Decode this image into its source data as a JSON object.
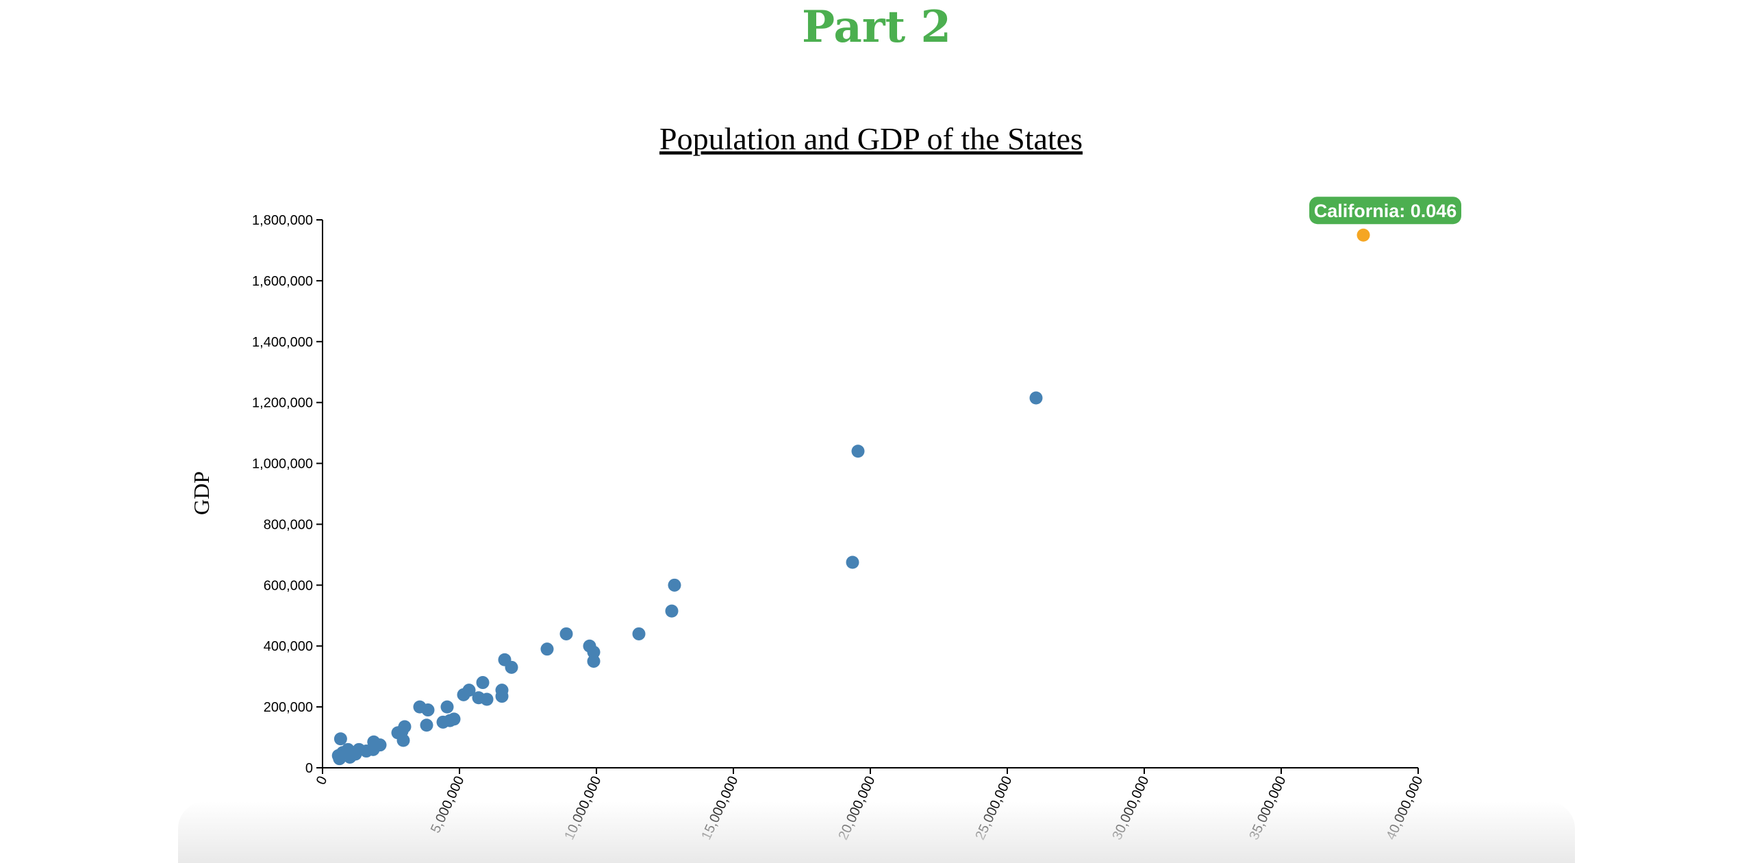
{
  "page": {
    "heading": "Part 2",
    "heading_color": "#4caf50"
  },
  "tooltip": {
    "text": "California: 0.046",
    "bg_color": "#4caf50",
    "text_color": "#ffffff"
  },
  "colors": {
    "point": "#4682b4",
    "highlight": "#f5a623"
  },
  "chart_data": {
    "type": "scatter",
    "title": "Population and GDP of the States",
    "xlabel": "",
    "ylabel": "GDP",
    "xlim": [
      0,
      40000000
    ],
    "ylim": [
      0,
      1800000
    ],
    "x_ticks": [
      0,
      5000000,
      10000000,
      15000000,
      20000000,
      25000000,
      30000000,
      35000000,
      40000000
    ],
    "x_tick_labels": [
      "0",
      "5,000,000",
      "10,000,000",
      "15,000,000",
      "20,000,000",
      "25,000,000",
      "30,000,000",
      "35,000,000",
      "40,000,000"
    ],
    "y_ticks": [
      0,
      200000,
      400000,
      600000,
      800000,
      1000000,
      1200000,
      1400000,
      1600000,
      1800000
    ],
    "y_tick_labels": [
      "0",
      "200,000",
      "400,000",
      "600,000",
      "800,000",
      "1,000,000",
      "1,200,000",
      "1,400,000",
      "1,600,000",
      "1,800,000"
    ],
    "grid": false,
    "highlighted": {
      "label": "California",
      "x": 38000000,
      "y": 1750000
    },
    "points": [
      {
        "x": 620000,
        "y": 30000
      },
      {
        "x": 740000,
        "y": 50000
      },
      {
        "x": 580000,
        "y": 40000
      },
      {
        "x": 660000,
        "y": 95000
      },
      {
        "x": 1000000,
        "y": 35000
      },
      {
        "x": 930000,
        "y": 60000
      },
      {
        "x": 1200000,
        "y": 45000
      },
      {
        "x": 1330000,
        "y": 60000
      },
      {
        "x": 1600000,
        "y": 55000
      },
      {
        "x": 1850000,
        "y": 60000
      },
      {
        "x": 1870000,
        "y": 85000
      },
      {
        "x": 2100000,
        "y": 75000
      },
      {
        "x": 2750000,
        "y": 115000
      },
      {
        "x": 2900000,
        "y": 120000
      },
      {
        "x": 3000000,
        "y": 135000
      },
      {
        "x": 2950000,
        "y": 90000
      },
      {
        "x": 3550000,
        "y": 200000
      },
      {
        "x": 3850000,
        "y": 190000
      },
      {
        "x": 3800000,
        "y": 140000
      },
      {
        "x": 4400000,
        "y": 150000
      },
      {
        "x": 4550000,
        "y": 200000
      },
      {
        "x": 4650000,
        "y": 155000
      },
      {
        "x": 4800000,
        "y": 160000
      },
      {
        "x": 5150000,
        "y": 240000
      },
      {
        "x": 5350000,
        "y": 255000
      },
      {
        "x": 5700000,
        "y": 230000
      },
      {
        "x": 5850000,
        "y": 280000
      },
      {
        "x": 6000000,
        "y": 225000
      },
      {
        "x": 6550000,
        "y": 255000
      },
      {
        "x": 6550000,
        "y": 235000
      },
      {
        "x": 6650000,
        "y": 355000
      },
      {
        "x": 6900000,
        "y": 330000
      },
      {
        "x": 8200000,
        "y": 390000
      },
      {
        "x": 8900000,
        "y": 440000
      },
      {
        "x": 9750000,
        "y": 400000
      },
      {
        "x": 9900000,
        "y": 380000
      },
      {
        "x": 9900000,
        "y": 350000
      },
      {
        "x": 11550000,
        "y": 440000
      },
      {
        "x": 12750000,
        "y": 515000
      },
      {
        "x": 12850000,
        "y": 600000
      },
      {
        "x": 19350000,
        "y": 675000
      },
      {
        "x": 19550000,
        "y": 1040000
      },
      {
        "x": 26050000,
        "y": 1215000
      }
    ]
  }
}
